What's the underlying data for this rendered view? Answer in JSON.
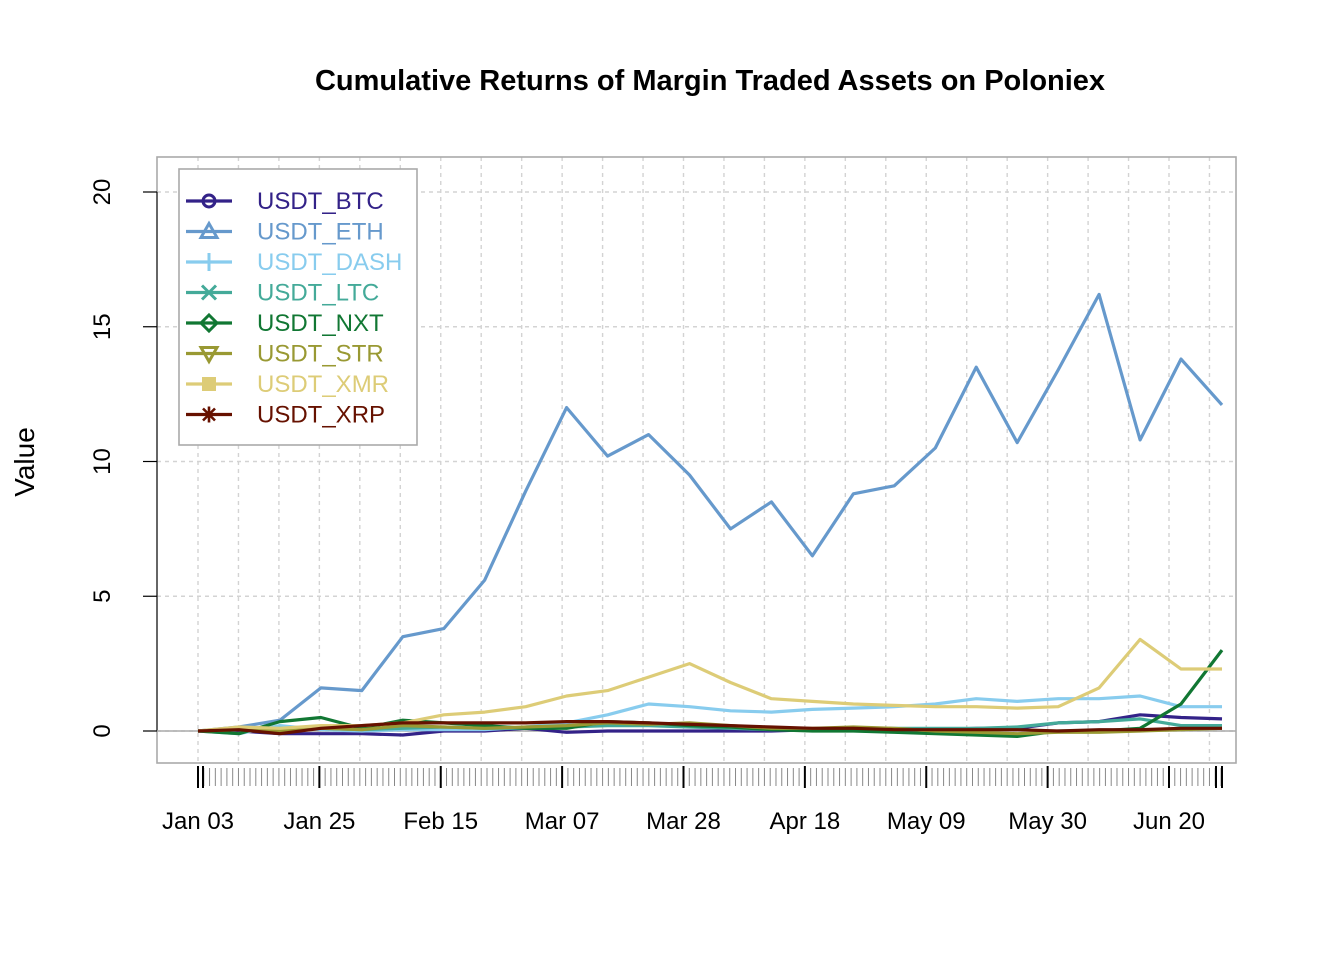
{
  "chart_data": {
    "type": "line",
    "title": "Cumulative Returns of Margin Traded Assets on Poloniex",
    "xlabel": "",
    "ylabel": "Value",
    "x_tick_labels": [
      "Jan 03",
      "Jan 25",
      "Feb 15",
      "Mar 07",
      "Mar 28",
      "Apr 18",
      "May 09",
      "May 30",
      "Jun 20"
    ],
    "y_ticks": [
      0,
      5,
      10,
      15,
      20
    ],
    "ylim": [
      -1.2,
      21.3
    ],
    "grid": true,
    "legend_position": "top-left",
    "x": [
      "Jan 03",
      "Jan 10",
      "Jan 17",
      "Jan 25",
      "Jan 31",
      "Feb 07",
      "Feb 15",
      "Feb 22",
      "Feb 29",
      "Mar 07",
      "Mar 14",
      "Mar 21",
      "Mar 28",
      "Apr 04",
      "Apr 11",
      "Apr 18",
      "Apr 25",
      "May 02",
      "May 09",
      "May 16",
      "May 23",
      "May 30",
      "Jun 06",
      "Jun 13",
      "Jun 20",
      "Jun 26"
    ],
    "series": [
      {
        "name": "USDT_BTC",
        "color": "#332288",
        "marker": "circle",
        "values": [
          0.0,
          0.0,
          -0.1,
          -0.1,
          -0.1,
          -0.15,
          0.0,
          0.0,
          0.1,
          -0.05,
          0.0,
          0.0,
          0.0,
          0.0,
          0.0,
          0.05,
          0.05,
          0.05,
          0.05,
          0.1,
          0.1,
          0.3,
          0.35,
          0.6,
          0.5,
          0.45
        ]
      },
      {
        "name": "USDT_ETH",
        "color": "#6699CC",
        "marker": "triangle",
        "values": [
          0.0,
          0.15,
          0.4,
          1.6,
          1.5,
          3.5,
          3.8,
          5.6,
          8.9,
          12.0,
          10.2,
          11.0,
          9.5,
          7.5,
          8.5,
          6.5,
          8.8,
          9.1,
          10.5,
          13.5,
          10.7,
          13.4,
          16.2,
          10.8,
          13.8,
          12.1
        ]
      },
      {
        "name": "USDT_DASH",
        "color": "#88CCEE",
        "marker": "plus",
        "values": [
          0.0,
          -0.1,
          0.2,
          0.05,
          0.0,
          0.05,
          0.05,
          0.05,
          0.15,
          0.3,
          0.6,
          1.0,
          0.9,
          0.75,
          0.7,
          0.8,
          0.85,
          0.9,
          1.0,
          1.2,
          1.1,
          1.2,
          1.2,
          1.3,
          0.9,
          0.9
        ]
      },
      {
        "name": "USDT_LTC",
        "color": "#44AA99",
        "marker": "x",
        "values": [
          0.0,
          0.05,
          0.1,
          0.1,
          0.05,
          0.1,
          0.15,
          0.1,
          0.1,
          0.15,
          0.2,
          0.2,
          0.15,
          0.1,
          0.05,
          0.05,
          0.1,
          0.1,
          0.1,
          0.1,
          0.15,
          0.3,
          0.35,
          0.45,
          0.2,
          0.2
        ]
      },
      {
        "name": "USDT_NXT",
        "color": "#117733",
        "marker": "diamond",
        "values": [
          0.0,
          -0.1,
          0.35,
          0.5,
          0.1,
          0.4,
          0.3,
          0.2,
          0.1,
          0.1,
          0.35,
          0.3,
          0.2,
          0.15,
          0.05,
          0.0,
          0.0,
          -0.05,
          -0.1,
          -0.15,
          -0.2,
          0.0,
          0.0,
          0.1,
          1.0,
          3.0
        ]
      },
      {
        "name": "USDT_STR",
        "color": "#999933",
        "marker": "triangle-down",
        "values": [
          0.0,
          0.05,
          0.0,
          0.1,
          0.05,
          0.2,
          0.15,
          0.1,
          0.15,
          0.2,
          0.3,
          0.25,
          0.3,
          0.2,
          0.1,
          0.1,
          0.15,
          0.1,
          0.0,
          -0.05,
          -0.1,
          -0.05,
          -0.05,
          0.0,
          0.05,
          0.1
        ]
      },
      {
        "name": "USDT_XMR",
        "color": "#DDCC77",
        "marker": "square",
        "values": [
          0.0,
          0.15,
          0.1,
          0.2,
          0.2,
          0.3,
          0.6,
          0.7,
          0.9,
          1.3,
          1.5,
          2.0,
          2.5,
          1.8,
          1.2,
          1.1,
          1.0,
          0.95,
          0.9,
          0.9,
          0.85,
          0.9,
          1.6,
          3.4,
          2.3,
          2.3
        ]
      },
      {
        "name": "USDT_XRP",
        "color": "#661100",
        "marker": "asterisk",
        "values": [
          0.0,
          0.05,
          -0.1,
          0.1,
          0.2,
          0.3,
          0.3,
          0.3,
          0.3,
          0.35,
          0.35,
          0.3,
          0.25,
          0.2,
          0.15,
          0.1,
          0.1,
          0.05,
          0.05,
          0.05,
          0.05,
          0.0,
          0.05,
          0.05,
          0.1,
          0.1
        ]
      }
    ]
  }
}
